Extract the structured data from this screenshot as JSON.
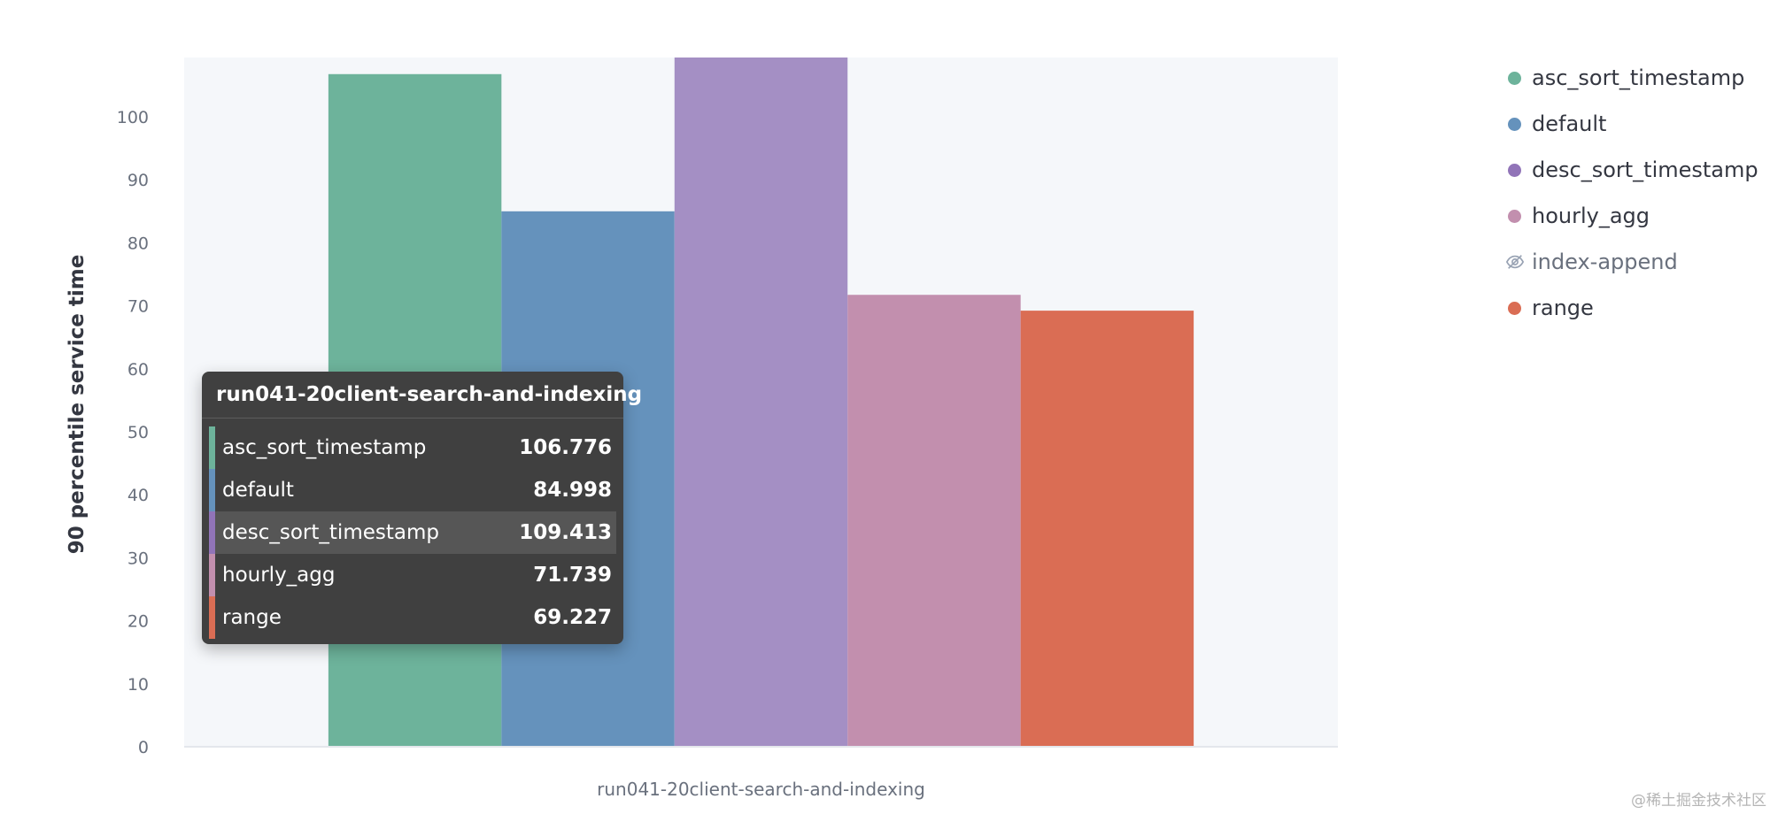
{
  "chart_data": {
    "type": "bar",
    "title": "",
    "xlabel": "",
    "ylabel": "90 percentile service time",
    "categories": [
      "run041-20client-search-and-indexing"
    ],
    "series": [
      {
        "name": "asc_sort_timestamp",
        "values": [
          106.776
        ],
        "color": "#6db39b"
      },
      {
        "name": "default",
        "values": [
          84.998
        ],
        "color": "#6592bc"
      },
      {
        "name": "desc_sort_timestamp",
        "values": [
          109.413
        ],
        "color": "#a48fc4"
      },
      {
        "name": "hourly_agg",
        "values": [
          71.739
        ],
        "color": "#c28fae"
      },
      {
        "name": "range",
        "values": [
          69.227
        ],
        "color": "#da6d54"
      }
    ],
    "yticks": [
      "0",
      "10",
      "20",
      "30",
      "40",
      "50",
      "60",
      "70",
      "80",
      "90",
      "100"
    ],
    "ylim": [
      0,
      109.413
    ],
    "grid": false,
    "legend_position": "right"
  },
  "legend": {
    "items": [
      {
        "label": "asc_sort_timestamp",
        "color": "#6db39b",
        "hidden": false
      },
      {
        "label": "default",
        "color": "#6592bc",
        "hidden": false
      },
      {
        "label": "desc_sort_timestamp",
        "color": "#9174b8",
        "hidden": false
      },
      {
        "label": "hourly_agg",
        "color": "#c28fae",
        "hidden": false
      },
      {
        "label": "index-append",
        "color": "#98a2b3",
        "hidden": true,
        "icon": "eye-closed-icon"
      },
      {
        "label": "range",
        "color": "#da6d54",
        "hidden": false
      }
    ]
  },
  "tooltip": {
    "title": "run041-20client-search-and-indexing",
    "rows": [
      {
        "name": "asc_sort_timestamp",
        "value": "106.776",
        "color": "#6db39b",
        "highlight": false
      },
      {
        "name": "default",
        "value": "84.998",
        "color": "#6592bc",
        "highlight": false
      },
      {
        "name": "desc_sort_timestamp",
        "value": "109.413",
        "color": "#9174b8",
        "highlight": true
      },
      {
        "name": "hourly_agg",
        "value": "71.739",
        "color": "#c28fae",
        "highlight": false
      },
      {
        "name": "range",
        "value": "69.227",
        "color": "#da6d54",
        "highlight": false
      }
    ]
  },
  "watermark": "@稀土掘金技术社区"
}
